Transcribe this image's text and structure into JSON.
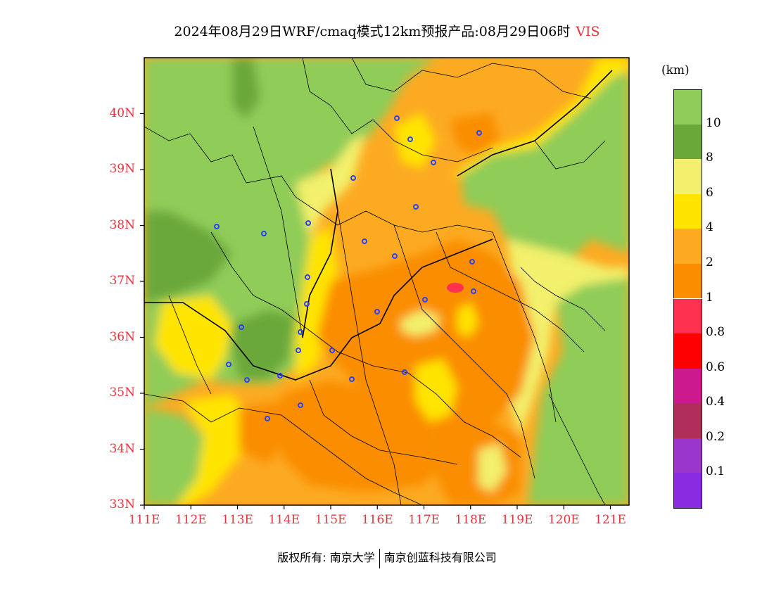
{
  "title": {
    "text": "2024年08月29日WRF/cmaq模式12km预报产品:08月29日06时",
    "variable": "VIS"
  },
  "map": {
    "lat_ticks": [
      "40N",
      "39N",
      "38N",
      "37N",
      "36N",
      "35N",
      "34N",
      "33N"
    ],
    "lon_ticks": [
      "111E",
      "112E",
      "113E",
      "114E",
      "115E",
      "116E",
      "117E",
      "118E",
      "119E",
      "120E",
      "121E"
    ],
    "lon_range": [
      111,
      121.4
    ],
    "lat_range": [
      33,
      41
    ],
    "fill_colors": {
      "vis_over_10": "#8fcc58",
      "vis_8_10": "#6aa83a",
      "vis_6_8": "#f2f06c",
      "vis_4_6": "#ffe400",
      "vis_2_4": "#fcaa22",
      "vis_1_2": "#fa8d00",
      "vis_0_8_1": "#ff3050"
    },
    "station_marker_color": "#2a40ff"
  },
  "colorbar": {
    "unit": "(km)",
    "colors": [
      "#8fcc58",
      "#6aa83a",
      "#f2f06c",
      "#ffe400",
      "#fcaa22",
      "#fa8d00",
      "#ff3050",
      "#ff0000",
      "#cc1a8c",
      "#b02e5c",
      "#9a36cc",
      "#8a2be2"
    ],
    "labels": [
      "10",
      "8",
      "6",
      "4",
      "2",
      "1",
      "0.8",
      "0.6",
      "0.4",
      "0.2",
      "0.1"
    ]
  },
  "footer": {
    "copyright": "版权所有: 南京大学",
    "company": "南京创蓝科技有限公司"
  }
}
